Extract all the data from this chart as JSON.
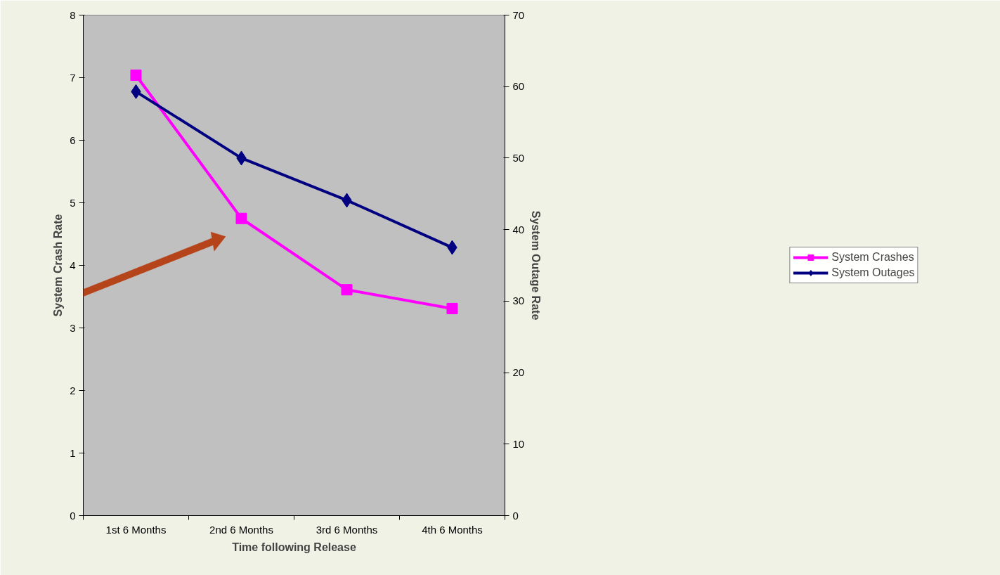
{
  "chart_data": {
    "type": "line",
    "xlabel": "Time following Release",
    "ylabel": "System Crash Rate",
    "y2label": "System Outage Rate",
    "categories": [
      "1st 6 Months",
      "2nd 6 Months",
      "3rd 6 Months",
      "4th 6 Months"
    ],
    "series": [
      {
        "name": "System Crashes",
        "color": "#ff00ff",
        "marker": "square",
        "values": [
          7.04,
          4.75,
          3.61,
          3.31
        ]
      },
      {
        "name": "System Outages",
        "color": "#000080",
        "marker": "diamond",
        "axis": "y2",
        "values": [
          59.3,
          50.0,
          44.1,
          37.5
        ]
      }
    ],
    "ylim": [
      0,
      8
    ],
    "yticks": [
      0,
      1,
      2,
      3,
      4,
      5,
      6,
      7,
      8
    ],
    "y2lim": [
      0,
      70
    ],
    "y2ticks": [
      0,
      10,
      20,
      30,
      40,
      50,
      60,
      70
    ],
    "grid": false,
    "legend": "right",
    "line_style": "solid"
  }
}
